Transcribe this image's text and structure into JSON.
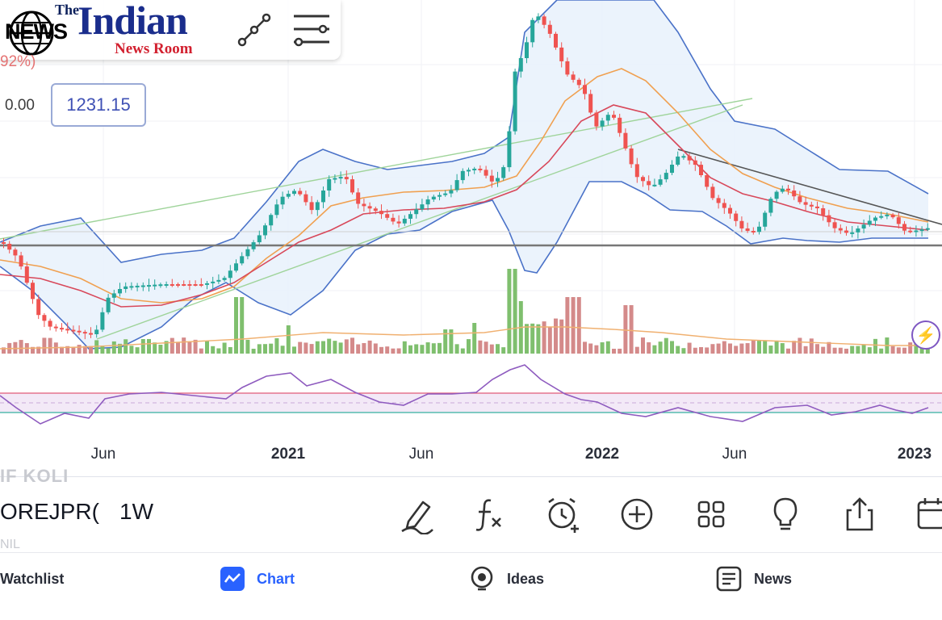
{
  "header": {
    "logo": {
      "the": "The",
      "indian": "Indian",
      "news": "NEWS",
      "news_room": "News Room"
    },
    "change_percent": "92%)",
    "value_zero": "0.00",
    "price": "1231.15",
    "tools": [
      "line-tool-icon",
      "settings-lines-icon"
    ]
  },
  "x_axis": {
    "labels": [
      {
        "text": "Jun",
        "bold": false
      },
      {
        "text": "2021",
        "bold": true
      },
      {
        "text": "Jun",
        "bold": false
      },
      {
        "text": "2022",
        "bold": true
      },
      {
        "text": "Jun",
        "bold": false
      },
      {
        "text": "2023",
        "bold": true
      }
    ]
  },
  "symbol_bar": {
    "ghost_text": "IF KOLI",
    "symbol": "OREJPR(",
    "interval": "1W",
    "ghost_text_2": "NIL",
    "tools": [
      "draw-pen-icon",
      "indicators-fx-icon",
      "alert-clock-icon",
      "add-circle-icon",
      "layouts-grid-icon",
      "idea-bulb-icon",
      "share-icon",
      "calendar-replay-icon"
    ]
  },
  "bottom_nav": {
    "items": [
      {
        "label": "Watchlist",
        "icon": "watchlist-icon",
        "active": false
      },
      {
        "label": "Chart",
        "icon": "chart-icon",
        "active": true
      },
      {
        "label": "Ideas",
        "icon": "ideas-bulb-icon",
        "active": false
      },
      {
        "label": "News",
        "icon": "news-icon",
        "active": false
      }
    ]
  },
  "colors": {
    "up": "#26a69a",
    "down": "#ef5350",
    "volume_up": "#7fbf6e",
    "volume_down": "#d48a8a",
    "bollinger": "#4a72c8",
    "bollinger_fill": "#e8f1fb",
    "ma_orange": "#f0a050",
    "ma_red": "#d8485a",
    "trend_green": "#9fd49a",
    "trend_dark": "#555555",
    "support": "#777777",
    "rsi": "#8e5bbf",
    "rsi_band": "#f3e9f7",
    "rsi_upper": "#e05a78",
    "rsi_lower": "#36b0a0",
    "accent": "#2962ff"
  },
  "chart_data": {
    "type": "candlestick",
    "timeframe": "1W",
    "x_axis_ticks": [
      "Jun",
      "2021",
      "Jun",
      "2022",
      "Jun",
      "2023"
    ],
    "last_price": 1231.15,
    "indicators": [
      "Bollinger Bands",
      "Moving Average (orange)",
      "Moving Average (red)",
      "Volume",
      "RSI"
    ],
    "price_series_approx": [
      {
        "x": "2020-Jun",
        "close": 980
      },
      {
        "x": "2020-Oct",
        "close": 1010
      },
      {
        "x": "2021-Jan",
        "close": 1310
      },
      {
        "x": "2021-Jun",
        "close": 1280
      },
      {
        "x": "2021-Sep",
        "close": 1390
      },
      {
        "x": "2021-Nov",
        "close": 1800
      },
      {
        "x": "2022-Jan",
        "close": 1560
      },
      {
        "x": "2022-Mar",
        "close": 1330
      },
      {
        "x": "2022-Jun",
        "close": 1200
      },
      {
        "x": "2022-Sep",
        "close": 1300
      },
      {
        "x": "2023-Jan",
        "close": 1231.15
      }
    ]
  }
}
